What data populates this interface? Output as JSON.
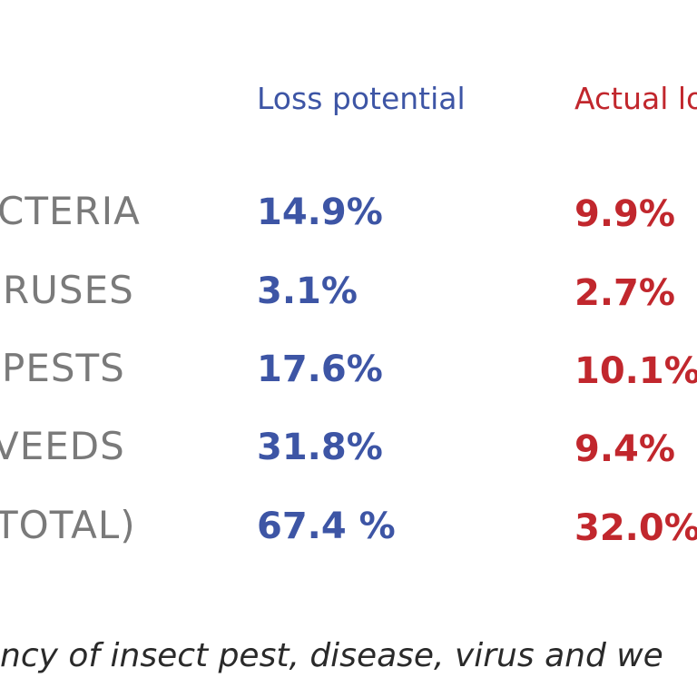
{
  "colors": {
    "loss": "#3d55a5",
    "actual": "#c1272d",
    "label": "#7a7a7a"
  },
  "chart_data": {
    "type": "table",
    "columns": [
      "Loss potential",
      "Actual lo"
    ],
    "rows": [
      {
        "label": "CTERIA",
        "loss": "14.9%",
        "actual": "9.9%"
      },
      {
        "label": "RUSES",
        "loss": "3.1%",
        "actual": "2.7%"
      },
      {
        "label": "PESTS",
        "loss": "17.6%",
        "actual": "10.1%"
      },
      {
        "label": "VEEDS",
        "loss": "31.8%",
        "actual": "9.4%"
      },
      {
        "label": "TOTAL)",
        "loss": "67.4 %",
        "actual": "32.0%"
      }
    ]
  },
  "caption": "ncy of insect pest, disease, virus and we"
}
